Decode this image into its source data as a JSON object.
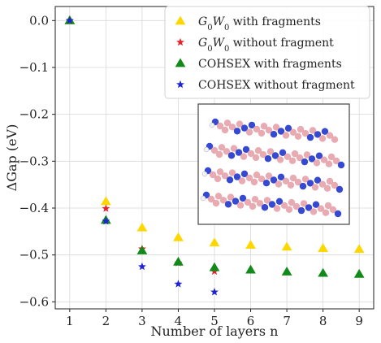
{
  "chart_data": {
    "type": "scatter",
    "xlabel": "Number of layers n",
    "ylabel": "ΔGap (eV)",
    "xlim": [
      0.6,
      9.4
    ],
    "ylim": [
      -0.615,
      0.03
    ],
    "xticks": [
      "1",
      "2",
      "3",
      "4",
      "5",
      "6",
      "7",
      "8",
      "9"
    ],
    "yticks": [
      "0.0",
      "−0.1",
      "−0.2",
      "−0.3",
      "−0.4",
      "−0.5",
      "−0.6"
    ],
    "grid": true,
    "legend_position": "top-right",
    "series": [
      {
        "name": "G0W0 with fragments",
        "marker": "triangle",
        "color": "#ffd700",
        "x": [
          1,
          2,
          3,
          4,
          5,
          6,
          7,
          8,
          9
        ],
        "y": [
          0.0,
          -0.386,
          -0.442,
          -0.463,
          -0.474,
          -0.479,
          -0.483,
          -0.486,
          -0.488
        ]
      },
      {
        "name": "G0W0 without fragment",
        "marker": "star",
        "color": "#e8222b",
        "x": [
          1,
          2,
          3,
          4,
          5
        ],
        "y": [
          0.0,
          -0.401,
          -0.487,
          -0.517,
          -0.535
        ]
      },
      {
        "name": "COHSEX with fragments",
        "marker": "triangle",
        "color": "#128a1a",
        "x": [
          1,
          2,
          3,
          4,
          5,
          6,
          7,
          8,
          9
        ],
        "y": [
          0.0,
          -0.426,
          -0.491,
          -0.515,
          -0.527,
          -0.532,
          -0.536,
          -0.539,
          -0.541
        ]
      },
      {
        "name": "COHSEX without fragment",
        "marker": "star",
        "color": "#1f23d6",
        "x": [
          1,
          2,
          3,
          4,
          5
        ],
        "y": [
          0.0,
          -0.428,
          -0.525,
          -0.562,
          -0.579
        ]
      }
    ]
  },
  "inset": {
    "description_icon": "layered-crystal-structure-image",
    "colors": {
      "blue_atom": "#2a3fd0",
      "pink_atom": "#e8a6ae",
      "white_atom": "#f2f2f2"
    }
  }
}
